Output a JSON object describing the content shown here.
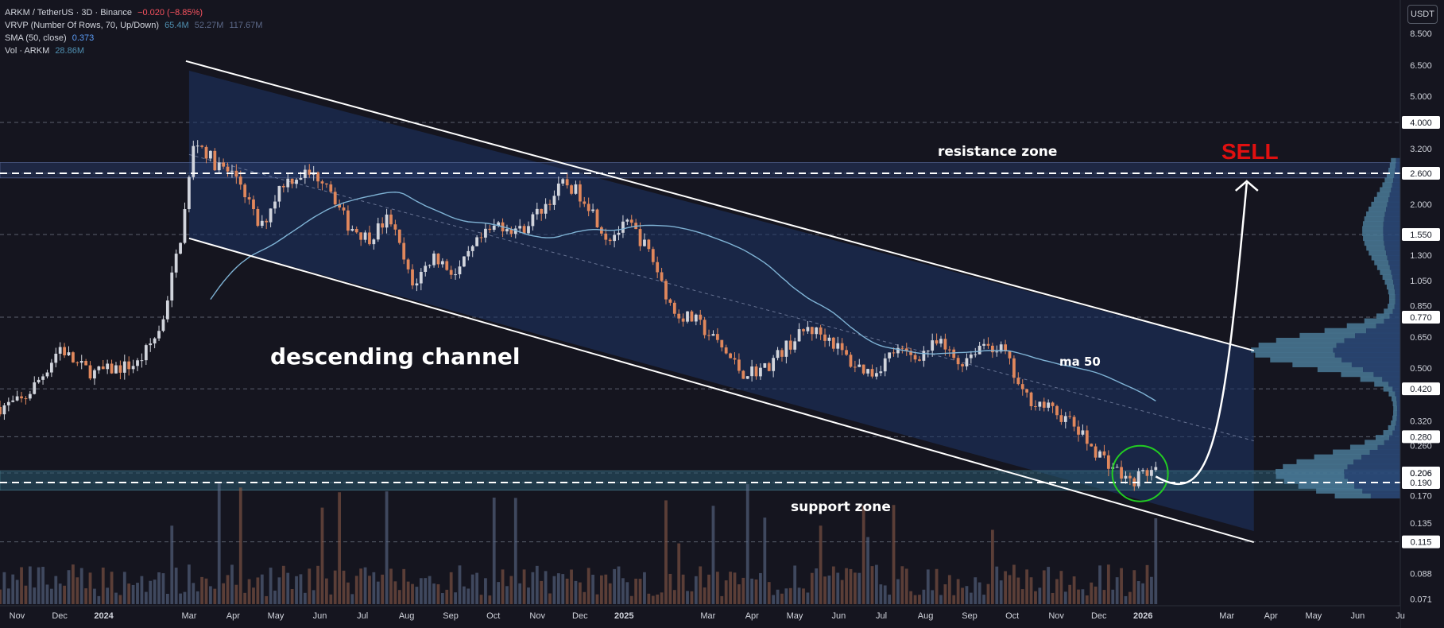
{
  "header": {
    "symbol": "ARKM / TetherUS · 3D · Binance",
    "change": "−0.020 (−8.85%)",
    "vrvp_label": "VRVP (Number Of Rows, 70, Up/Down)",
    "vrvp_values": [
      "65.4M",
      "52.27M",
      "117.67M"
    ],
    "sma_label": "SMA (50, close)",
    "sma_value": "0.373",
    "vol_label": "Vol · ARKM",
    "vol_value": "28.86M",
    "currency": "USDT"
  },
  "colors": {
    "background": "#15151f",
    "up": "#d1d4dc",
    "down": "#e0875c",
    "sma": "#7fb3d5",
    "channel_fill": "#1e3466",
    "zone_fill": "#2a5a6e",
    "sell": "#e01010",
    "circle": "#22cc22"
  },
  "chart_data": {
    "type": "candlestick",
    "scale": "log",
    "price_ticks": [
      "8.500",
      "6.500",
      "5.000",
      "4.000",
      "3.200",
      "2.600",
      "2.000",
      "1.550",
      "1.300",
      "1.050",
      "0.850",
      "0.770",
      "0.650",
      "0.500",
      "0.420",
      "0.320",
      "0.280",
      "0.260",
      "0.206",
      "0.190",
      "0.170",
      "0.135",
      "0.115",
      "0.088",
      "0.071"
    ],
    "highlighted_levels": [
      "4.000",
      "2.600",
      "1.550",
      "0.770",
      "0.420",
      "0.280",
      "0.206",
      "0.190",
      "0.115"
    ],
    "time_ticks": [
      {
        "label": "Nov",
        "d": "2023-11-01"
      },
      {
        "label": "Dec",
        "d": "2023-12-01"
      },
      {
        "label": "2024",
        "d": "2024-01-01"
      },
      {
        "label": "Mar",
        "d": "2024-03-01"
      },
      {
        "label": "Apr",
        "d": "2024-04-01"
      },
      {
        "label": "May",
        "d": "2024-05-01"
      },
      {
        "label": "Jun",
        "d": "2024-06-01"
      },
      {
        "label": "Jul",
        "d": "2024-07-01"
      },
      {
        "label": "Aug",
        "d": "2024-08-01"
      },
      {
        "label": "Sep",
        "d": "2024-09-01"
      },
      {
        "label": "Oct",
        "d": "2024-10-01"
      },
      {
        "label": "Nov",
        "d": "2024-11-01"
      },
      {
        "label": "Dec",
        "d": "2024-12-01"
      },
      {
        "label": "2025",
        "d": "2025-01-01"
      },
      {
        "label": "Mar",
        "d": "2025-03-01"
      },
      {
        "label": "Apr",
        "d": "2025-04-01"
      },
      {
        "label": "May",
        "d": "2025-05-01"
      },
      {
        "label": "Jun",
        "d": "2025-06-01"
      },
      {
        "label": "Jul",
        "d": "2025-07-01"
      },
      {
        "label": "Aug",
        "d": "2025-08-01"
      },
      {
        "label": "Sep",
        "d": "2025-09-01"
      },
      {
        "label": "Oct",
        "d": "2025-10-01"
      },
      {
        "label": "Nov",
        "d": "2025-11-01"
      },
      {
        "label": "Dec",
        "d": "2025-12-01"
      },
      {
        "label": "2026",
        "d": "2026-01-01"
      },
      {
        "label": "Mar",
        "d": "2026-03-01"
      },
      {
        "label": "Apr",
        "d": "2026-04-01"
      },
      {
        "label": "May",
        "d": "2026-05-01"
      },
      {
        "label": "Jun",
        "d": "2026-06-01"
      },
      {
        "label": "Ju",
        "d": "2026-07-01"
      }
    ],
    "price_path": [
      [
        "2023-10-20",
        0.36
      ],
      [
        "2023-11-05",
        0.38
      ],
      [
        "2023-11-20",
        0.48
      ],
      [
        "2023-12-01",
        0.6
      ],
      [
        "2023-12-12",
        0.52
      ],
      [
        "2023-12-25",
        0.48
      ],
      [
        "2024-01-10",
        0.5
      ],
      [
        "2024-01-25",
        0.52
      ],
      [
        "2024-02-10",
        0.7
      ],
      [
        "2024-02-25",
        1.6
      ],
      [
        "2024-03-05",
        3.5
      ],
      [
        "2024-03-20",
        2.8
      ],
      [
        "2024-04-05",
        2.5
      ],
      [
        "2024-04-20",
        1.6
      ],
      [
        "2024-05-05",
        2.4
      ],
      [
        "2024-05-20",
        2.6
      ],
      [
        "2024-06-05",
        2.5
      ],
      [
        "2024-06-20",
        1.7
      ],
      [
        "2024-07-05",
        1.5
      ],
      [
        "2024-07-20",
        1.8
      ],
      [
        "2024-08-05",
        1.0
      ],
      [
        "2024-08-20",
        1.3
      ],
      [
        "2024-09-05",
        1.1
      ],
      [
        "2024-09-20",
        1.45
      ],
      [
        "2024-10-05",
        1.7
      ],
      [
        "2024-10-20",
        1.6
      ],
      [
        "2024-11-05",
        1.95
      ],
      [
        "2024-11-20",
        2.4
      ],
      [
        "2024-12-05",
        2.1
      ],
      [
        "2024-12-20",
        1.5
      ],
      [
        "2025-01-05",
        1.7
      ],
      [
        "2025-01-20",
        1.3
      ],
      [
        "2025-02-05",
        0.8
      ],
      [
        "2025-02-20",
        0.75
      ],
      [
        "2025-03-10",
        0.6
      ],
      [
        "2025-03-25",
        0.48
      ],
      [
        "2025-04-10",
        0.5
      ],
      [
        "2025-04-25",
        0.6
      ],
      [
        "2025-05-10",
        0.7
      ],
      [
        "2025-05-25",
        0.65
      ],
      [
        "2025-06-10",
        0.52
      ],
      [
        "2025-06-25",
        0.48
      ],
      [
        "2025-07-10",
        0.58
      ],
      [
        "2025-07-25",
        0.55
      ],
      [
        "2025-08-10",
        0.62
      ],
      [
        "2025-08-25",
        0.52
      ],
      [
        "2025-09-10",
        0.62
      ],
      [
        "2025-09-25",
        0.58
      ],
      [
        "2025-10-08",
        0.4
      ],
      [
        "2025-10-25",
        0.36
      ],
      [
        "2025-11-10",
        0.32
      ],
      [
        "2025-11-25",
        0.26
      ],
      [
        "2025-12-10",
        0.22
      ],
      [
        "2025-12-22",
        0.19
      ],
      [
        "2026-01-05",
        0.21
      ],
      [
        "2026-01-10",
        0.206
      ]
    ],
    "candle_count": 270,
    "sma_period": 50,
    "sma_label": "ma 50",
    "channel": {
      "upper": [
        [
          "2024-03-01",
          6.2
        ],
        [
          "2026-03-20",
          0.58
        ]
      ],
      "lower": [
        [
          "2024-03-01",
          1.5
        ],
        [
          "2026-03-20",
          0.126
        ]
      ],
      "right_edge": "2026-03-20"
    },
    "resistance_zone": {
      "label": "resistance zone",
      "low": 2.5,
      "high": 2.85,
      "level": 2.6
    },
    "support_zone": {
      "label": "support zone",
      "low": 0.178,
      "high": 0.21,
      "level": 0.19
    },
    "pattern_label": "descending channel",
    "projection": {
      "from": [
        "2026-01-10",
        0.2
      ],
      "to": [
        "2026-03-15",
        2.4
      ],
      "label": "SELL"
    },
    "highlight_circle": {
      "center": [
        "2025-12-30",
        0.205
      ]
    },
    "current_price": "0.206"
  }
}
